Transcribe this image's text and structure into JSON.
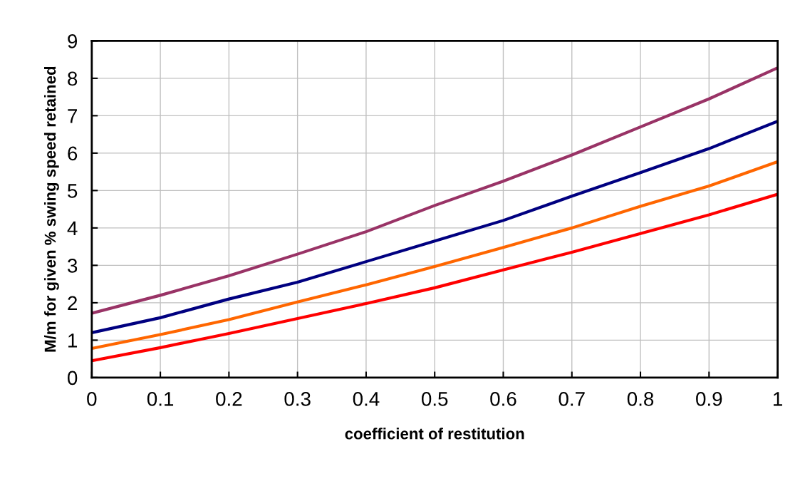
{
  "chart_data": {
    "type": "line",
    "xlabel": "coefficient of restitution",
    "ylabel": "M/m for given % swing speed retained",
    "x": [
      0,
      0.1,
      0.2,
      0.3,
      0.4,
      0.5,
      0.6,
      0.7,
      0.8,
      0.9,
      1
    ],
    "series": [
      {
        "color": "#993366",
        "values": [
          1.72,
          2.2,
          2.72,
          3.3,
          3.9,
          4.6,
          5.25,
          5.95,
          6.7,
          7.45,
          8.28
        ]
      },
      {
        "color": "#000080",
        "values": [
          1.2,
          1.6,
          2.1,
          2.55,
          3.1,
          3.65,
          4.2,
          4.85,
          5.48,
          6.12,
          6.85
        ]
      },
      {
        "color": "#ff6600",
        "values": [
          0.78,
          1.15,
          1.55,
          2.02,
          2.48,
          2.97,
          3.48,
          4.0,
          4.58,
          5.12,
          5.77
        ]
      },
      {
        "color": "#ff0000",
        "values": [
          0.45,
          0.8,
          1.18,
          1.58,
          1.98,
          2.4,
          2.88,
          3.35,
          3.85,
          4.35,
          4.9
        ]
      }
    ],
    "xlim": [
      0,
      1
    ],
    "xticks": [
      0,
      0.1,
      0.2,
      0.3,
      0.4,
      0.5,
      0.6,
      0.7,
      0.8,
      0.9,
      1
    ],
    "ylim": [
      0,
      9
    ],
    "yticks": [
      0,
      1,
      2,
      3,
      4,
      5,
      6,
      7,
      8,
      9
    ],
    "grid": true,
    "marker": "none",
    "line_style": "solid"
  }
}
